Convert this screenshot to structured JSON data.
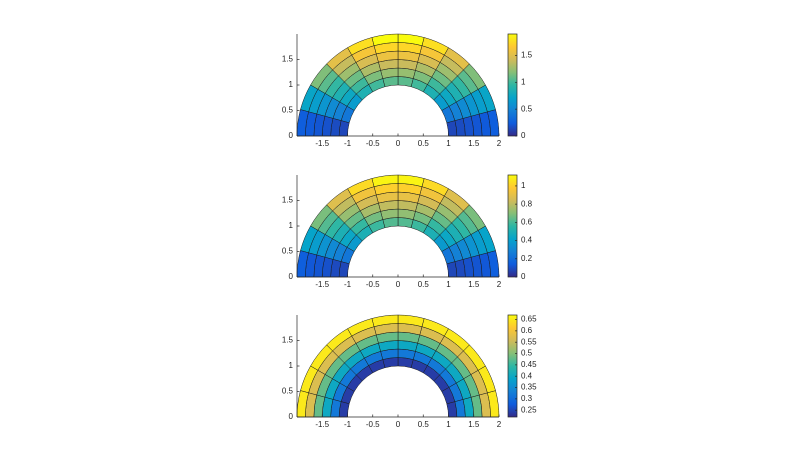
{
  "chart_data": [
    {
      "type": "surface",
      "xlim": [
        -2,
        2
      ],
      "ylim": [
        0,
        2
      ],
      "xticks": [
        -1.5,
        -1,
        -0.5,
        0,
        0.5,
        1,
        1.5,
        2
      ],
      "yticks": [
        0,
        0.5,
        1,
        1.5
      ],
      "rlim": [
        1,
        2
      ],
      "thetalim": [
        0,
        180
      ],
      "clim": [
        0,
        1.9
      ],
      "cticks": [
        0,
        0.5,
        1,
        1.5
      ],
      "values": [
        [
          0.14,
          0.41,
          0.66,
          0.86,
          1.0,
          1.07,
          1.07,
          1.0,
          0.86,
          0.66,
          0.41,
          0.14
        ],
        [
          0.16,
          0.48,
          0.76,
          0.99,
          1.16,
          1.24,
          1.24,
          1.16,
          0.99,
          0.76,
          0.48,
          0.16
        ],
        [
          0.19,
          0.54,
          0.86,
          1.12,
          1.31,
          1.4,
          1.4,
          1.31,
          1.12,
          0.86,
          0.54,
          0.19
        ],
        [
          0.21,
          0.61,
          0.96,
          1.26,
          1.46,
          1.57,
          1.57,
          1.46,
          1.26,
          0.96,
          0.61,
          0.21
        ],
        [
          0.23,
          0.67,
          1.07,
          1.39,
          1.62,
          1.73,
          1.73,
          1.62,
          1.39,
          1.07,
          0.67,
          0.23
        ],
        [
          0.25,
          0.73,
          1.17,
          1.52,
          1.77,
          1.9,
          1.9,
          1.77,
          1.52,
          1.17,
          0.73,
          0.25
        ]
      ]
    },
    {
      "type": "surface",
      "xlim": [
        -2,
        2
      ],
      "ylim": [
        0,
        2
      ],
      "xticks": [
        -1.5,
        -1,
        -0.5,
        0,
        0.5,
        1,
        1.5,
        2
      ],
      "yticks": [
        0,
        0.5,
        1,
        1.5
      ],
      "rlim": [
        1,
        2
      ],
      "thetalim": [
        0,
        180
      ],
      "clim": [
        0,
        1.12
      ],
      "cticks": [
        0,
        0.2,
        0.4,
        0.6,
        0.8,
        1
      ],
      "values": [
        [
          0.08,
          0.24,
          0.38,
          0.5,
          0.58,
          0.62,
          0.62,
          0.58,
          0.5,
          0.38,
          0.24,
          0.08
        ],
        [
          0.09,
          0.28,
          0.44,
          0.57,
          0.67,
          0.72,
          0.72,
          0.67,
          0.57,
          0.44,
          0.28,
          0.09
        ],
        [
          0.11,
          0.31,
          0.5,
          0.65,
          0.76,
          0.81,
          0.81,
          0.76,
          0.65,
          0.5,
          0.31,
          0.11
        ],
        [
          0.12,
          0.35,
          0.56,
          0.73,
          0.85,
          0.91,
          0.91,
          0.85,
          0.73,
          0.56,
          0.35,
          0.12
        ],
        [
          0.13,
          0.39,
          0.62,
          0.81,
          0.94,
          1.0,
          1.0,
          0.94,
          0.81,
          0.62,
          0.39,
          0.13
        ],
        [
          0.15,
          0.42,
          0.68,
          0.88,
          1.03,
          1.1,
          1.1,
          1.03,
          0.88,
          0.68,
          0.42,
          0.15
        ]
      ]
    },
    {
      "type": "surface",
      "xlim": [
        -2,
        2
      ],
      "ylim": [
        0,
        2
      ],
      "xticks": [
        -1.5,
        -1,
        -0.5,
        0,
        0.5,
        1,
        1.5,
        2
      ],
      "yticks": [
        0,
        0.5,
        1,
        1.5
      ],
      "rlim": [
        1,
        2
      ],
      "thetalim": [
        0,
        180
      ],
      "clim": [
        0.22,
        0.67
      ],
      "cticks": [
        0.25,
        0.3,
        0.35,
        0.4,
        0.45,
        0.5,
        0.55,
        0.6,
        0.65
      ],
      "values": [
        [
          0.24,
          0.24,
          0.24,
          0.24,
          0.24,
          0.24,
          0.24,
          0.24,
          0.24,
          0.24,
          0.24,
          0.24
        ],
        [
          0.32,
          0.32,
          0.32,
          0.32,
          0.32,
          0.32,
          0.32,
          0.32,
          0.32,
          0.32,
          0.32,
          0.32
        ],
        [
          0.4,
          0.4,
          0.4,
          0.4,
          0.4,
          0.4,
          0.4,
          0.4,
          0.4,
          0.4,
          0.4,
          0.4
        ],
        [
          0.48,
          0.48,
          0.48,
          0.48,
          0.48,
          0.48,
          0.48,
          0.48,
          0.48,
          0.48,
          0.48,
          0.48
        ],
        [
          0.57,
          0.57,
          0.57,
          0.57,
          0.57,
          0.57,
          0.57,
          0.57,
          0.57,
          0.57,
          0.57,
          0.57
        ],
        [
          0.65,
          0.65,
          0.65,
          0.65,
          0.65,
          0.65,
          0.65,
          0.65,
          0.65,
          0.65,
          0.65,
          0.65
        ]
      ]
    }
  ]
}
